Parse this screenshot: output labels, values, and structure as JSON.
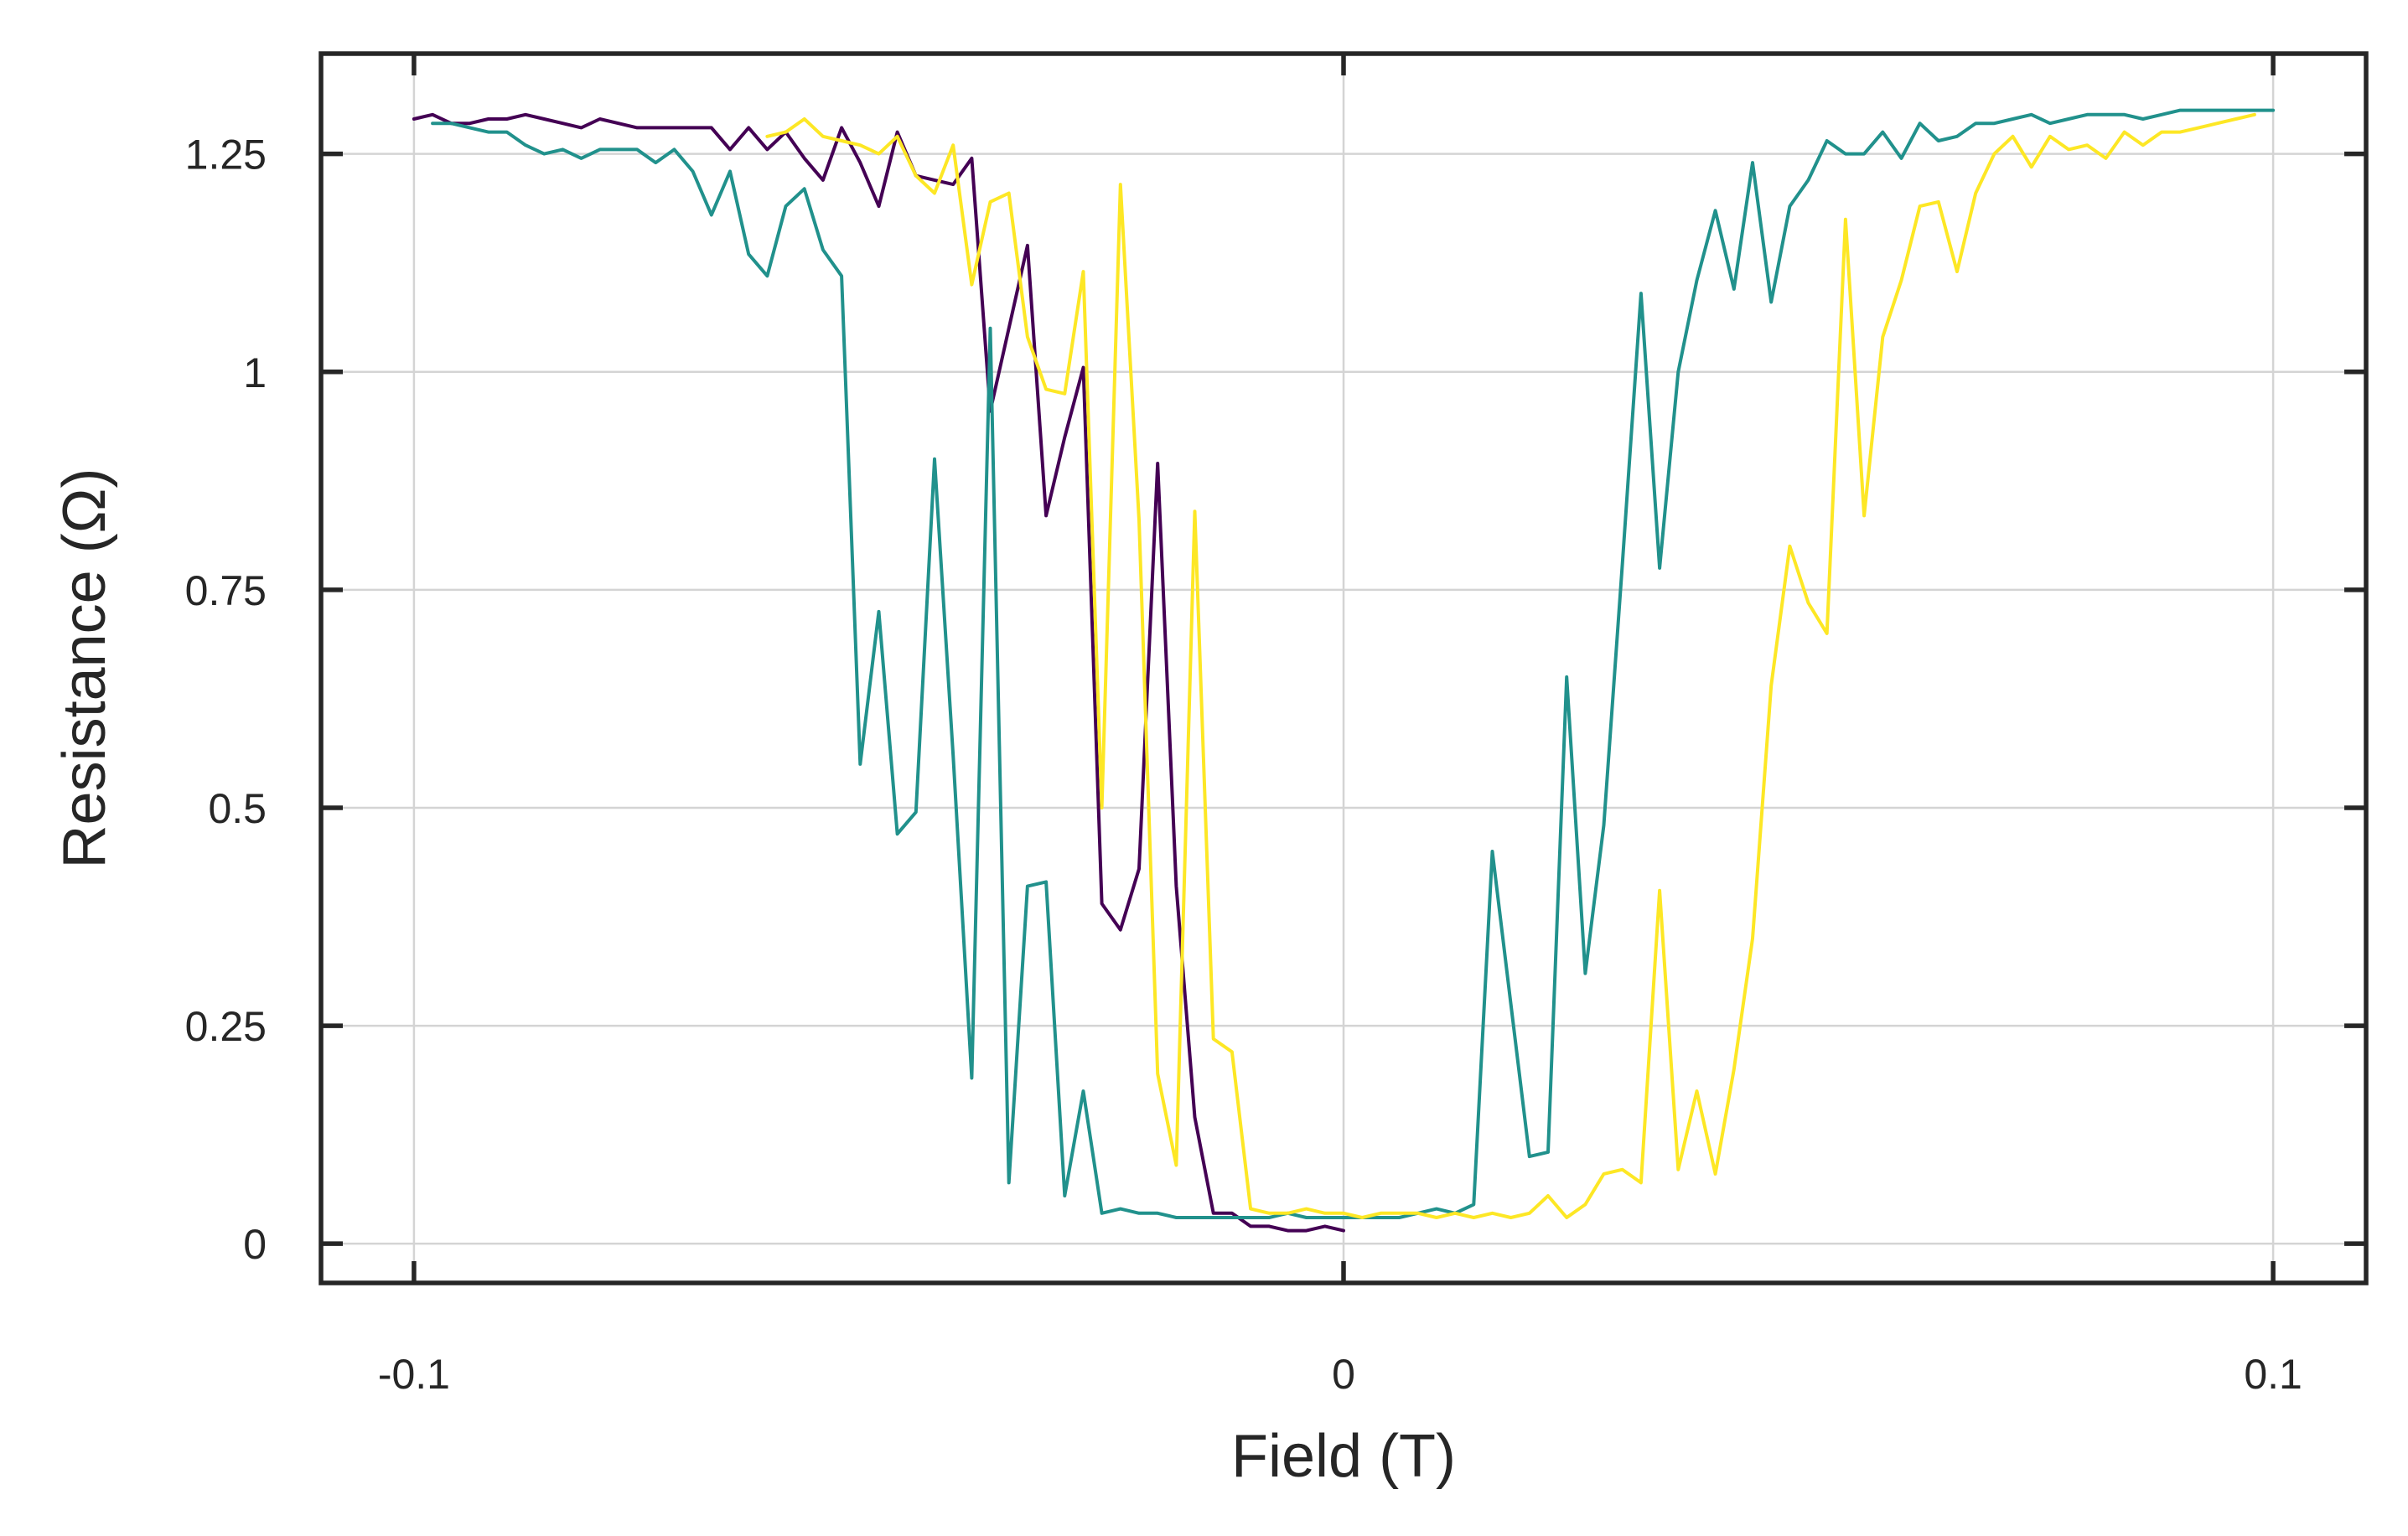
{
  "chart_data": {
    "type": "line",
    "xlabel": "Field (T)",
    "ylabel": "Resistance (Ω)",
    "xlim": [
      -0.11,
      0.11
    ],
    "ylim": [
      -0.045,
      1.365
    ],
    "xticks": [
      -0.1,
      0,
      0.1
    ],
    "xtick_labels": [
      "-0.1",
      "0",
      "0.1"
    ],
    "yticks": [
      0,
      0.25,
      0.5,
      0.75,
      1,
      1.25
    ],
    "ytick_labels": [
      "0",
      "0.25",
      "0.5",
      "0.75",
      "1",
      "1.25"
    ],
    "grid": true,
    "series": [
      {
        "color": "#440154",
        "x": [
          -0.1,
          -0.098,
          -0.096,
          -0.094,
          -0.092,
          -0.09,
          -0.088,
          -0.086,
          -0.084,
          -0.082,
          -0.08,
          -0.078,
          -0.076,
          -0.074,
          -0.072,
          -0.07,
          -0.068,
          -0.066,
          -0.064,
          -0.062,
          -0.06,
          -0.058,
          -0.056,
          -0.054,
          -0.052,
          -0.05,
          -0.048,
          -0.046,
          -0.044,
          -0.042,
          -0.04,
          -0.038,
          -0.036,
          -0.034,
          -0.032,
          -0.03,
          -0.028,
          -0.026,
          -0.024,
          -0.022,
          -0.02,
          -0.018,
          -0.016,
          -0.014,
          -0.012,
          -0.01,
          -0.008,
          -0.006,
          -0.004,
          -0.002,
          0
        ],
        "values": [
          1.29,
          1.295,
          1.285,
          1.285,
          1.29,
          1.29,
          1.295,
          1.29,
          1.285,
          1.28,
          1.29,
          1.285,
          1.28,
          1.28,
          1.28,
          1.28,
          1.28,
          1.255,
          1.28,
          1.255,
          1.275,
          1.245,
          1.22,
          1.28,
          1.24,
          1.19,
          1.275,
          1.225,
          1.22,
          1.215,
          1.245,
          0.955,
          1.05,
          1.145,
          0.835,
          0.925,
          1.005,
          0.39,
          0.36,
          0.43,
          0.895,
          0.41,
          0.145,
          0.035,
          0.035,
          0.02,
          0.02,
          0.015,
          0.015,
          0.02,
          0.015
        ]
      },
      {
        "color": "#21918c",
        "x": [
          -0.098,
          -0.096,
          -0.094,
          -0.092,
          -0.09,
          -0.088,
          -0.086,
          -0.084,
          -0.082,
          -0.08,
          -0.078,
          -0.076,
          -0.074,
          -0.072,
          -0.07,
          -0.068,
          -0.066,
          -0.064,
          -0.062,
          -0.06,
          -0.058,
          -0.056,
          -0.054,
          -0.052,
          -0.05,
          -0.048,
          -0.046,
          -0.044,
          -0.042,
          -0.04,
          -0.038,
          -0.036,
          -0.034,
          -0.032,
          -0.03,
          -0.028,
          -0.026,
          -0.024,
          -0.022,
          -0.02,
          -0.018,
          -0.016,
          -0.014,
          -0.012,
          -0.01,
          -0.008,
          -0.006,
          -0.004,
          -0.002,
          0,
          0.002,
          0.004,
          0.006,
          0.008,
          0.01,
          0.012,
          0.014,
          0.016,
          0.018,
          0.02,
          0.022,
          0.024,
          0.026,
          0.028,
          0.03,
          0.032,
          0.034,
          0.036,
          0.038,
          0.04,
          0.042,
          0.044,
          0.046,
          0.048,
          0.05,
          0.052,
          0.054,
          0.056,
          0.058,
          0.06,
          0.062,
          0.064,
          0.066,
          0.068,
          0.07,
          0.072,
          0.074,
          0.076,
          0.078,
          0.08,
          0.082,
          0.084,
          0.086,
          0.088,
          0.09,
          0.092,
          0.094,
          0.096,
          0.098,
          0.1
        ],
        "values": [
          1.285,
          1.285,
          1.28,
          1.275,
          1.275,
          1.26,
          1.25,
          1.255,
          1.245,
          1.255,
          1.255,
          1.255,
          1.24,
          1.255,
          1.23,
          1.18,
          1.23,
          1.135,
          1.11,
          1.19,
          1.21,
          1.14,
          1.11,
          0.55,
          0.725,
          0.47,
          0.495,
          0.9,
          0.56,
          0.19,
          1.05,
          0.07,
          0.41,
          0.415,
          0.055,
          0.175,
          0.035,
          0.04,
          0.035,
          0.035,
          0.03,
          0.03,
          0.03,
          0.03,
          0.03,
          0.03,
          0.035,
          0.03,
          0.03,
          0.03,
          0.03,
          0.03,
          0.03,
          0.035,
          0.04,
          0.035,
          0.045,
          0.45,
          0.275,
          0.1,
          0.105,
          0.65,
          0.31,
          0.48,
          0.78,
          1.09,
          0.775,
          1.0,
          1.105,
          1.185,
          1.095,
          1.24,
          1.08,
          1.19,
          1.22,
          1.265,
          1.25,
          1.25,
          1.275,
          1.245,
          1.285,
          1.265,
          1.27,
          1.285,
          1.285,
          1.29,
          1.295,
          1.285,
          1.29,
          1.295,
          1.295,
          1.295,
          1.29,
          1.295,
          1.3,
          1.3,
          1.3,
          1.3,
          1.3,
          1.3
        ]
      },
      {
        "color": "#fde725",
        "x": [
          -0.062,
          -0.06,
          -0.058,
          -0.056,
          -0.054,
          -0.052,
          -0.05,
          -0.048,
          -0.046,
          -0.044,
          -0.042,
          -0.04,
          -0.038,
          -0.036,
          -0.034,
          -0.032,
          -0.03,
          -0.028,
          -0.026,
          -0.024,
          -0.022,
          -0.02,
          -0.018,
          -0.016,
          -0.014,
          -0.012,
          -0.01,
          -0.008,
          -0.006,
          -0.004,
          -0.002,
          0,
          0.002,
          0.004,
          0.006,
          0.008,
          0.01,
          0.012,
          0.014,
          0.016,
          0.018,
          0.02,
          0.022,
          0.024,
          0.026,
          0.028,
          0.03,
          0.032,
          0.034,
          0.036,
          0.038,
          0.04,
          0.042,
          0.044,
          0.046,
          0.048,
          0.05,
          0.052,
          0.054,
          0.056,
          0.058,
          0.06,
          0.062,
          0.064,
          0.066,
          0.068,
          0.07,
          0.072,
          0.074,
          0.076,
          0.078,
          0.08,
          0.082,
          0.084,
          0.086,
          0.088,
          0.09,
          0.092,
          0.094,
          0.096,
          0.098
        ],
        "values": [
          1.27,
          1.275,
          1.29,
          1.27,
          1.265,
          1.26,
          1.25,
          1.27,
          1.225,
          1.205,
          1.26,
          1.1,
          1.195,
          1.205,
          1.04,
          0.98,
          0.975,
          1.115,
          0.5,
          1.215,
          0.83,
          0.195,
          0.09,
          0.84,
          0.235,
          0.22,
          0.04,
          0.035,
          0.035,
          0.04,
          0.035,
          0.035,
          0.03,
          0.035,
          0.035,
          0.035,
          0.03,
          0.035,
          0.03,
          0.035,
          0.03,
          0.035,
          0.055,
          0.03,
          0.045,
          0.08,
          0.085,
          0.07,
          0.405,
          0.085,
          0.175,
          0.08,
          0.2,
          0.35,
          0.64,
          0.8,
          0.735,
          0.7,
          1.175,
          0.835,
          1.04,
          1.105,
          1.19,
          1.195,
          1.115,
          1.205,
          1.25,
          1.27,
          1.235,
          1.27,
          1.255,
          1.26,
          1.245,
          1.275,
          1.26,
          1.275,
          1.275,
          1.28,
          1.285,
          1.29,
          1.295
        ]
      }
    ]
  }
}
